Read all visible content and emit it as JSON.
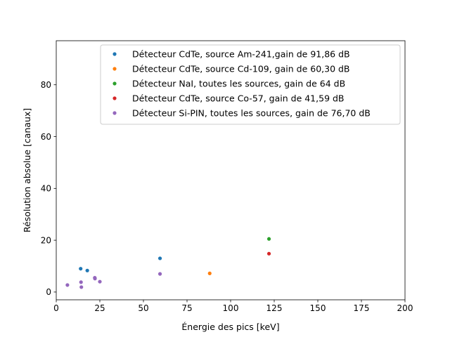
{
  "chart_data": {
    "type": "scatter",
    "title": "",
    "xlabel": "Énergie des pics [keV]",
    "ylabel": "Résolution absolue [canaux]",
    "xlim": [
      0,
      200
    ],
    "ylim": [
      -3,
      97
    ],
    "xticks": [
      0,
      25,
      50,
      75,
      100,
      125,
      150,
      175,
      200
    ],
    "yticks": [
      0,
      20,
      40,
      60,
      80
    ],
    "grid": false,
    "legend_position": "top-right",
    "series": [
      {
        "name": "Détecteur CdTe, source Am-241,gain de 91,86 dB",
        "color": "#1f77b4",
        "points": [
          [
            14,
            9.0
          ],
          [
            17.8,
            8.3
          ],
          [
            59.5,
            13.0
          ]
        ]
      },
      {
        "name": "Détecteur CdTe, source Cd-109, gain de 60,30 dB",
        "color": "#ff7f0e",
        "points": [
          [
            88,
            7.2
          ]
        ]
      },
      {
        "name": "Détecteur NaI, toutes les sources, gain de 64 dB",
        "color": "#2ca02c",
        "points": [
          [
            122,
            20.5
          ]
        ]
      },
      {
        "name": "Détecteur CdTe, source Co-57, gain de 41,59 dB",
        "color": "#d62728",
        "points": [
          [
            122,
            14.8
          ]
        ]
      },
      {
        "name": "Détecteur Si-PIN, toutes les sources, gain de 76,70 dB",
        "color": "#9467bd",
        "points": [
          [
            6.4,
            2.7
          ],
          [
            14.2,
            3.8
          ],
          [
            14.4,
            1.9
          ],
          [
            22.1,
            5.5
          ],
          [
            22.2,
            5.2
          ],
          [
            25,
            4.0
          ],
          [
            59.5,
            7.0
          ]
        ]
      }
    ]
  }
}
